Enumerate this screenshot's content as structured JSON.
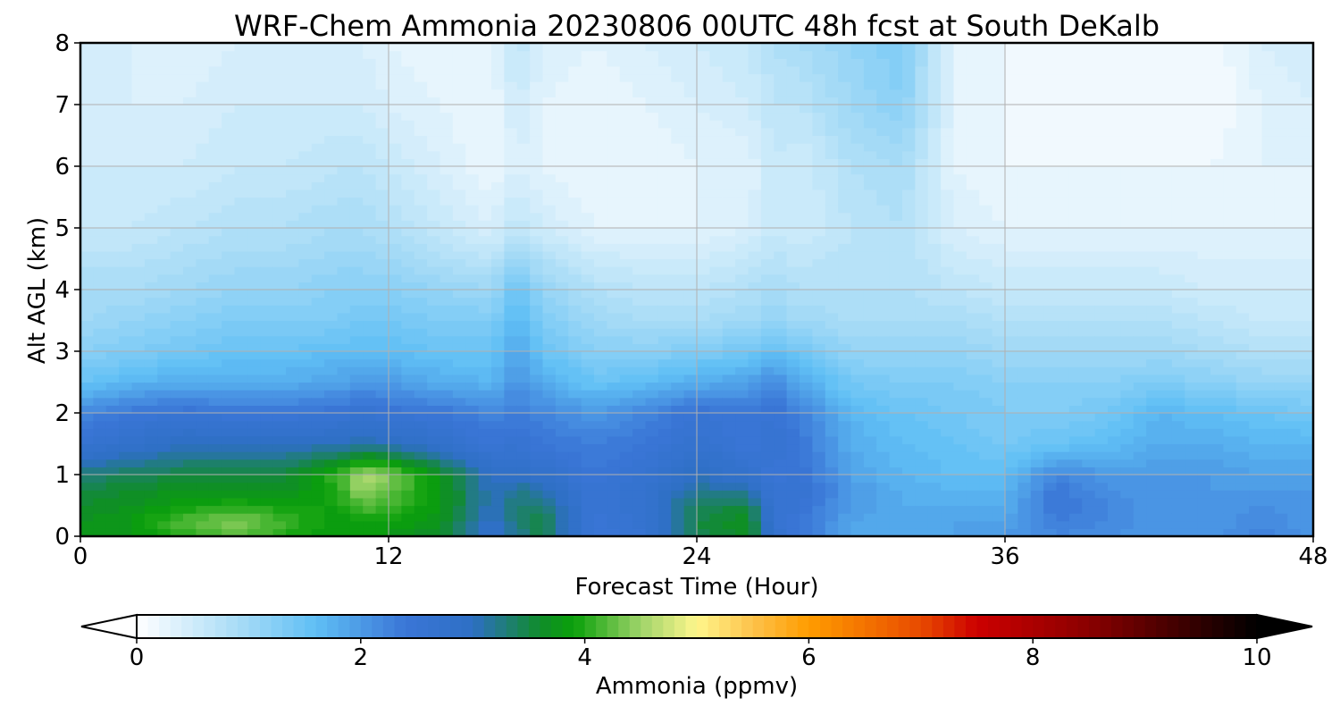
{
  "chart_data": {
    "type": "heatmap",
    "title": "WRF-Chem Ammonia  20230806 00UTC 48h fcst at South DeKalb",
    "xlabel": "Forecast Time (Hour)",
    "ylabel": "Alt AGL (km)",
    "xlim": [
      0,
      48
    ],
    "ylim": [
      0,
      8
    ],
    "xticks": [
      0,
      12,
      24,
      36,
      48
    ],
    "yticks": [
      0,
      1,
      2,
      3,
      4,
      5,
      6,
      7,
      8
    ],
    "grid": true,
    "x_hours": [
      0,
      2,
      4,
      6,
      8,
      10,
      11,
      12,
      14,
      16,
      17,
      18,
      20,
      22,
      24,
      26,
      27,
      28,
      30,
      32,
      34,
      36,
      38,
      40,
      42,
      44,
      46,
      48
    ],
    "y_km": [
      0,
      0.25,
      0.5,
      0.75,
      1,
      1.5,
      2,
      2.5,
      3,
      3.5,
      4,
      5,
      6,
      7,
      8
    ],
    "values_ppmv": [
      [
        3.7,
        3.7,
        3.6,
        3.5,
        3.3,
        2.6,
        2.2,
        1.5,
        1.2,
        1.0,
        0.9,
        0.6,
        0.5,
        0.5,
        0.4
      ],
      [
        3.8,
        3.8,
        3.7,
        3.6,
        3.4,
        2.8,
        2.4,
        1.7,
        1.3,
        1.1,
        0.9,
        0.6,
        0.5,
        0.4,
        0.4
      ],
      [
        4.0,
        4.2,
        3.9,
        3.7,
        3.5,
        3.0,
        2.5,
        1.8,
        1.4,
        1.2,
        1.0,
        0.7,
        0.5,
        0.4,
        0.3
      ],
      [
        4.2,
        4.4,
        4.0,
        3.7,
        3.5,
        3.0,
        2.4,
        1.8,
        1.5,
        1.3,
        1.1,
        0.8,
        0.6,
        0.5,
        0.4
      ],
      [
        4.0,
        4.1,
        3.9,
        3.7,
        3.5,
        3.0,
        2.4,
        1.8,
        1.5,
        1.3,
        1.1,
        0.8,
        0.6,
        0.5,
        0.4
      ],
      [
        3.8,
        3.8,
        3.9,
        4.0,
        4.1,
        3.0,
        2.5,
        1.9,
        1.6,
        1.3,
        1.2,
        0.9,
        0.7,
        0.5,
        0.4
      ],
      [
        3.8,
        3.9,
        4.2,
        4.5,
        4.6,
        3.1,
        2.6,
        2.0,
        1.6,
        1.4,
        1.2,
        0.9,
        0.7,
        0.5,
        0.4
      ],
      [
        3.8,
        3.9,
        4.1,
        4.3,
        4.4,
        3.0,
        2.5,
        2.0,
        1.6,
        1.4,
        1.2,
        0.8,
        0.6,
        0.4,
        0.3
      ],
      [
        3.6,
        3.7,
        3.8,
        3.8,
        3.7,
        2.8,
        2.4,
        1.8,
        1.5,
        1.3,
        1.1,
        0.6,
        0.4,
        0.3,
        0.2
      ],
      [
        2.8,
        2.9,
        3.0,
        3.0,
        2.9,
        2.5,
        2.2,
        1.7,
        1.5,
        1.3,
        1.0,
        0.4,
        0.2,
        0.2,
        0.3
      ],
      [
        3.2,
        3.3,
        3.3,
        3.2,
        2.9,
        2.6,
        2.3,
        2.1,
        1.9,
        1.7,
        1.5,
        0.7,
        0.4,
        0.5,
        0.7
      ],
      [
        3.5,
        3.5,
        3.3,
        3.1,
        2.8,
        2.4,
        2.2,
        1.8,
        1.5,
        1.3,
        1.1,
        0.5,
        0.3,
        0.3,
        0.4
      ],
      [
        2.4,
        2.4,
        2.5,
        2.5,
        2.4,
        2.3,
        2.0,
        1.5,
        1.2,
        1.0,
        0.8,
        0.3,
        0.2,
        0.2,
        0.3
      ],
      [
        2.6,
        2.7,
        2.7,
        2.7,
        2.6,
        2.4,
        2.2,
        1.6,
        1.2,
        0.9,
        0.7,
        0.3,
        0.2,
        0.3,
        0.4
      ],
      [
        3.4,
        3.5,
        3.4,
        3.2,
        3.0,
        2.7,
        2.5,
        1.8,
        1.3,
        0.9,
        0.7,
        0.3,
        0.3,
        0.4,
        0.5
      ],
      [
        3.6,
        3.7,
        3.5,
        3.1,
        2.7,
        2.4,
        2.4,
        1.9,
        1.4,
        1.0,
        0.8,
        0.4,
        0.3,
        0.5,
        0.6
      ],
      [
        2.8,
        2.6,
        2.6,
        2.5,
        2.4,
        2.6,
        2.5,
        2.2,
        1.6,
        1.1,
        0.9,
        0.6,
        0.6,
        0.7,
        0.8
      ],
      [
        2.4,
        2.4,
        2.5,
        2.6,
        2.5,
        2.4,
        2.3,
        1.8,
        1.4,
        1.0,
        0.8,
        0.5,
        0.5,
        0.7,
        0.9
      ],
      [
        1.9,
        1.9,
        2.0,
        2.0,
        1.9,
        1.8,
        1.7,
        1.4,
        1.1,
        0.9,
        0.8,
        0.7,
        0.8,
        1.0,
        1.1
      ],
      [
        1.8,
        1.8,
        1.8,
        1.8,
        1.7,
        1.6,
        1.5,
        1.3,
        1.1,
        0.9,
        0.8,
        0.8,
        0.9,
        1.2,
        1.3
      ],
      [
        1.9,
        1.9,
        1.8,
        1.7,
        1.6,
        1.5,
        1.4,
        1.3,
        1.1,
        0.9,
        0.7,
        0.4,
        0.3,
        0.3,
        0.3
      ],
      [
        2.0,
        1.9,
        1.8,
        1.7,
        1.6,
        1.4,
        1.3,
        1.2,
        1.0,
        0.8,
        0.6,
        0.3,
        0.2,
        0.2,
        0.2
      ],
      [
        2.2,
        2.3,
        2.4,
        2.4,
        2.2,
        1.5,
        1.3,
        1.2,
        1.0,
        0.8,
        0.6,
        0.3,
        0.2,
        0.1,
        0.1
      ],
      [
        2.1,
        2.2,
        2.2,
        2.1,
        2.0,
        1.6,
        1.4,
        1.2,
        1.0,
        0.8,
        0.6,
        0.3,
        0.2,
        0.1,
        0.1
      ],
      [
        2.0,
        2.0,
        2.0,
        2.0,
        2.0,
        1.8,
        1.7,
        1.3,
        1.0,
        0.8,
        0.6,
        0.3,
        0.2,
        0.1,
        0.1
      ],
      [
        2.0,
        2.0,
        2.0,
        2.0,
        2.0,
        1.8,
        1.6,
        1.2,
        0.9,
        0.7,
        0.5,
        0.3,
        0.2,
        0.1,
        0.1
      ],
      [
        2.3,
        2.2,
        2.1,
        2.0,
        1.9,
        1.7,
        1.5,
        1.1,
        0.8,
        0.6,
        0.5,
        0.3,
        0.3,
        0.3,
        0.4
      ],
      [
        2.0,
        2.0,
        2.0,
        2.0,
        1.9,
        1.7,
        1.4,
        1.1,
        0.8,
        0.6,
        0.5,
        0.3,
        0.3,
        0.4,
        0.5
      ]
    ],
    "colorbar": {
      "label": "Ammonia  (ppmv)",
      "min": 0,
      "max": 10,
      "ticks": [
        0,
        2,
        4,
        6,
        8,
        10
      ],
      "extend": "both",
      "levels": 100,
      "color_stops": [
        {
          "v": 0,
          "c": "#ffffff"
        },
        {
          "v": 1.0,
          "c": "#9fd8f6"
        },
        {
          "v": 1.6,
          "c": "#5fbff5"
        },
        {
          "v": 2.4,
          "c": "#3a75d6"
        },
        {
          "v": 3.0,
          "c": "#2e6fc4"
        },
        {
          "v": 3.6,
          "c": "#108c2a"
        },
        {
          "v": 3.9,
          "c": "#0aa00a"
        },
        {
          "v": 4.5,
          "c": "#9fd46a"
        },
        {
          "v": 5.0,
          "c": "#fff68c"
        },
        {
          "v": 5.5,
          "c": "#fdc24a"
        },
        {
          "v": 6.0,
          "c": "#ff9c00"
        },
        {
          "v": 7.0,
          "c": "#e84a00"
        },
        {
          "v": 7.5,
          "c": "#cc0000"
        },
        {
          "v": 8.5,
          "c": "#8a0000"
        },
        {
          "v": 10,
          "c": "#000000"
        }
      ]
    }
  }
}
